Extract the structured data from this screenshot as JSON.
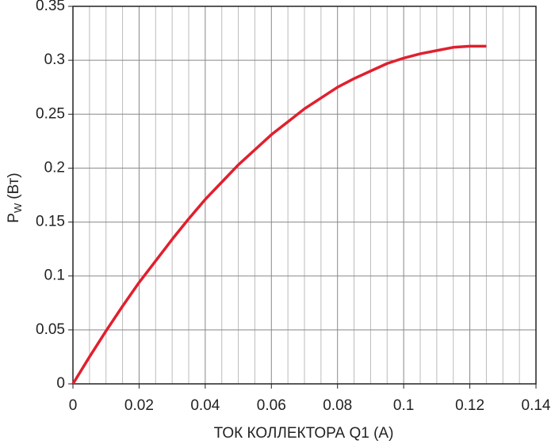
{
  "chart_data": {
    "type": "line",
    "x_label": "ТОК КОЛЛЕКТОРА Q1 (А)",
    "y_label": {
      "main": "P",
      "sub": "W",
      "unit": "(Вт)"
    },
    "x": [
      0,
      0.005,
      0.01,
      0.015,
      0.02,
      0.025,
      0.03,
      0.035,
      0.04,
      0.045,
      0.05,
      0.055,
      0.06,
      0.065,
      0.07,
      0.075,
      0.08,
      0.085,
      0.09,
      0.095,
      0.1,
      0.105,
      0.11,
      0.115,
      0.12,
      0.125
    ],
    "series": [
      {
        "color": "#e0202e",
        "values": [
          0,
          0.025,
          0.049,
          0.072,
          0.094,
          0.114,
          0.134,
          0.153,
          0.171,
          0.187,
          0.203,
          0.217,
          0.231,
          0.243,
          0.255,
          0.265,
          0.275,
          0.283,
          0.29,
          0.297,
          0.302,
          0.306,
          0.309,
          0.312,
          0.313,
          0.313
        ]
      }
    ],
    "xlim": [
      0,
      0.14
    ],
    "xticks": [
      0,
      0.02,
      0.04,
      0.06,
      0.08,
      0.1,
      0.12,
      0.14
    ],
    "ylim": [
      0,
      0.35
    ],
    "yticks": [
      0,
      0.05,
      0.1,
      0.15,
      0.2,
      0.25,
      0.3,
      0.35
    ],
    "grid": true,
    "minor_x_grid": true
  }
}
